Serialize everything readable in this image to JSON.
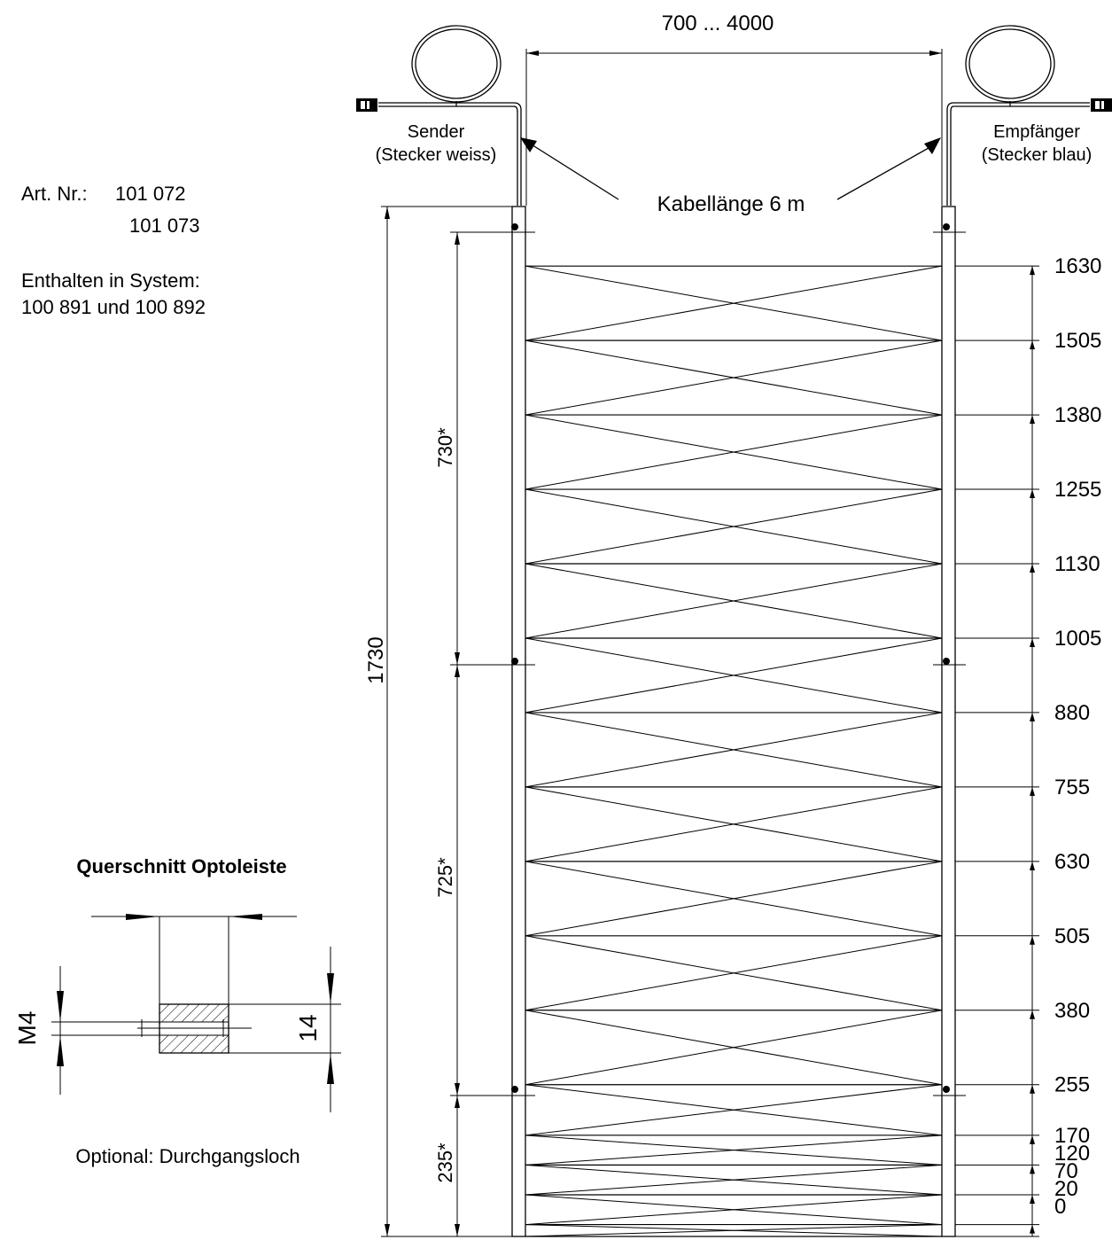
{
  "width_label": "700 ... 4000",
  "sender": {
    "name": "Sender",
    "plug": "(Stecker weiss)"
  },
  "receiver": {
    "name": "Empfänger",
    "plug": "(Stecker blau)"
  },
  "cable_label": "Kabellänge 6 m",
  "art_nr": {
    "label": "Art. Nr.:",
    "values": [
      "101 072",
      "101 073"
    ]
  },
  "system": {
    "label": "Enthalten in System:",
    "value": "100 891 und 100 892"
  },
  "total_height": "1730",
  "segments": [
    {
      "label": "730*"
    },
    {
      "label": "725*"
    },
    {
      "label": "235*"
    }
  ],
  "beam_heights": [
    "1630",
    "1505",
    "1380",
    "1255",
    "1130",
    "1005",
    "880",
    "755",
    "630",
    "505",
    "380",
    "255",
    "170",
    "120",
    "70",
    "20",
    "0"
  ],
  "cross_section": {
    "title": "Querschnitt Optoleiste",
    "thread_label": "M4",
    "height_label": "14",
    "note": "Optional: Durchgangsloch"
  }
}
